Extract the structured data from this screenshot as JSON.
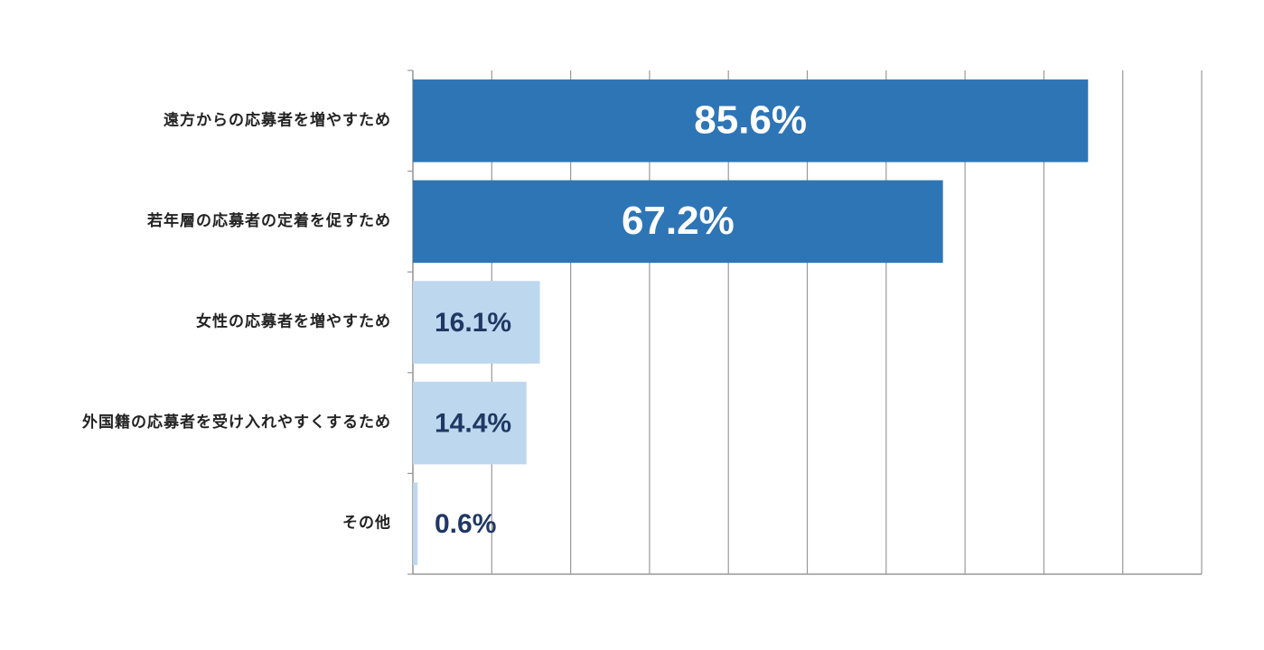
{
  "chart_data": {
    "type": "barh",
    "categories": [
      "遠方からの応募者を増やすため",
      "若年層の応募者の定着を促すため",
      "女性の応募者を増やすため",
      "外国籍の応募者を受け入れやすくするため",
      "その他"
    ],
    "values": [
      85.6,
      67.2,
      16.1,
      14.4,
      0.6
    ],
    "value_labels": [
      "85.6%",
      "67.2%",
      "16.1%",
      "14.4%",
      "0.6%"
    ],
    "colors": [
      "#2e75b6",
      "#2e75b6",
      "#bdd7ee",
      "#bdd7ee",
      "#bdd7ee"
    ],
    "xlim": [
      0,
      100
    ],
    "xticks": [
      0,
      10,
      20,
      30,
      40,
      50,
      60,
      70,
      80,
      90,
      100
    ],
    "grid": true
  }
}
